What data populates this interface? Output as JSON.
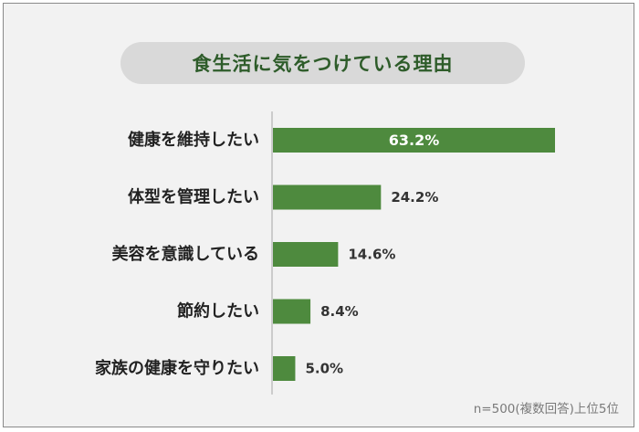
{
  "colors": {
    "bar": "#4e8a3e",
    "title_text": "#2e5c2a",
    "axis": "#bfbfbf"
  },
  "chart_data": {
    "type": "bar",
    "orientation": "horizontal",
    "title": "食生活に気をつけている理由",
    "categories": [
      "健康を維持したい",
      "体型を管理したい",
      "美容を意識している",
      "節約したい",
      "家族の健康を守りたい"
    ],
    "values": [
      63.2,
      24.2,
      14.6,
      8.4,
      5.0
    ],
    "value_labels": [
      "63.2%",
      "24.2%",
      "14.6%",
      "8.4%",
      "5.0%"
    ],
    "unit": "%",
    "xlim": [
      0,
      63.2
    ],
    "grid": false,
    "legend": "none"
  },
  "footnote": "n=500(複数回答)上位5位"
}
